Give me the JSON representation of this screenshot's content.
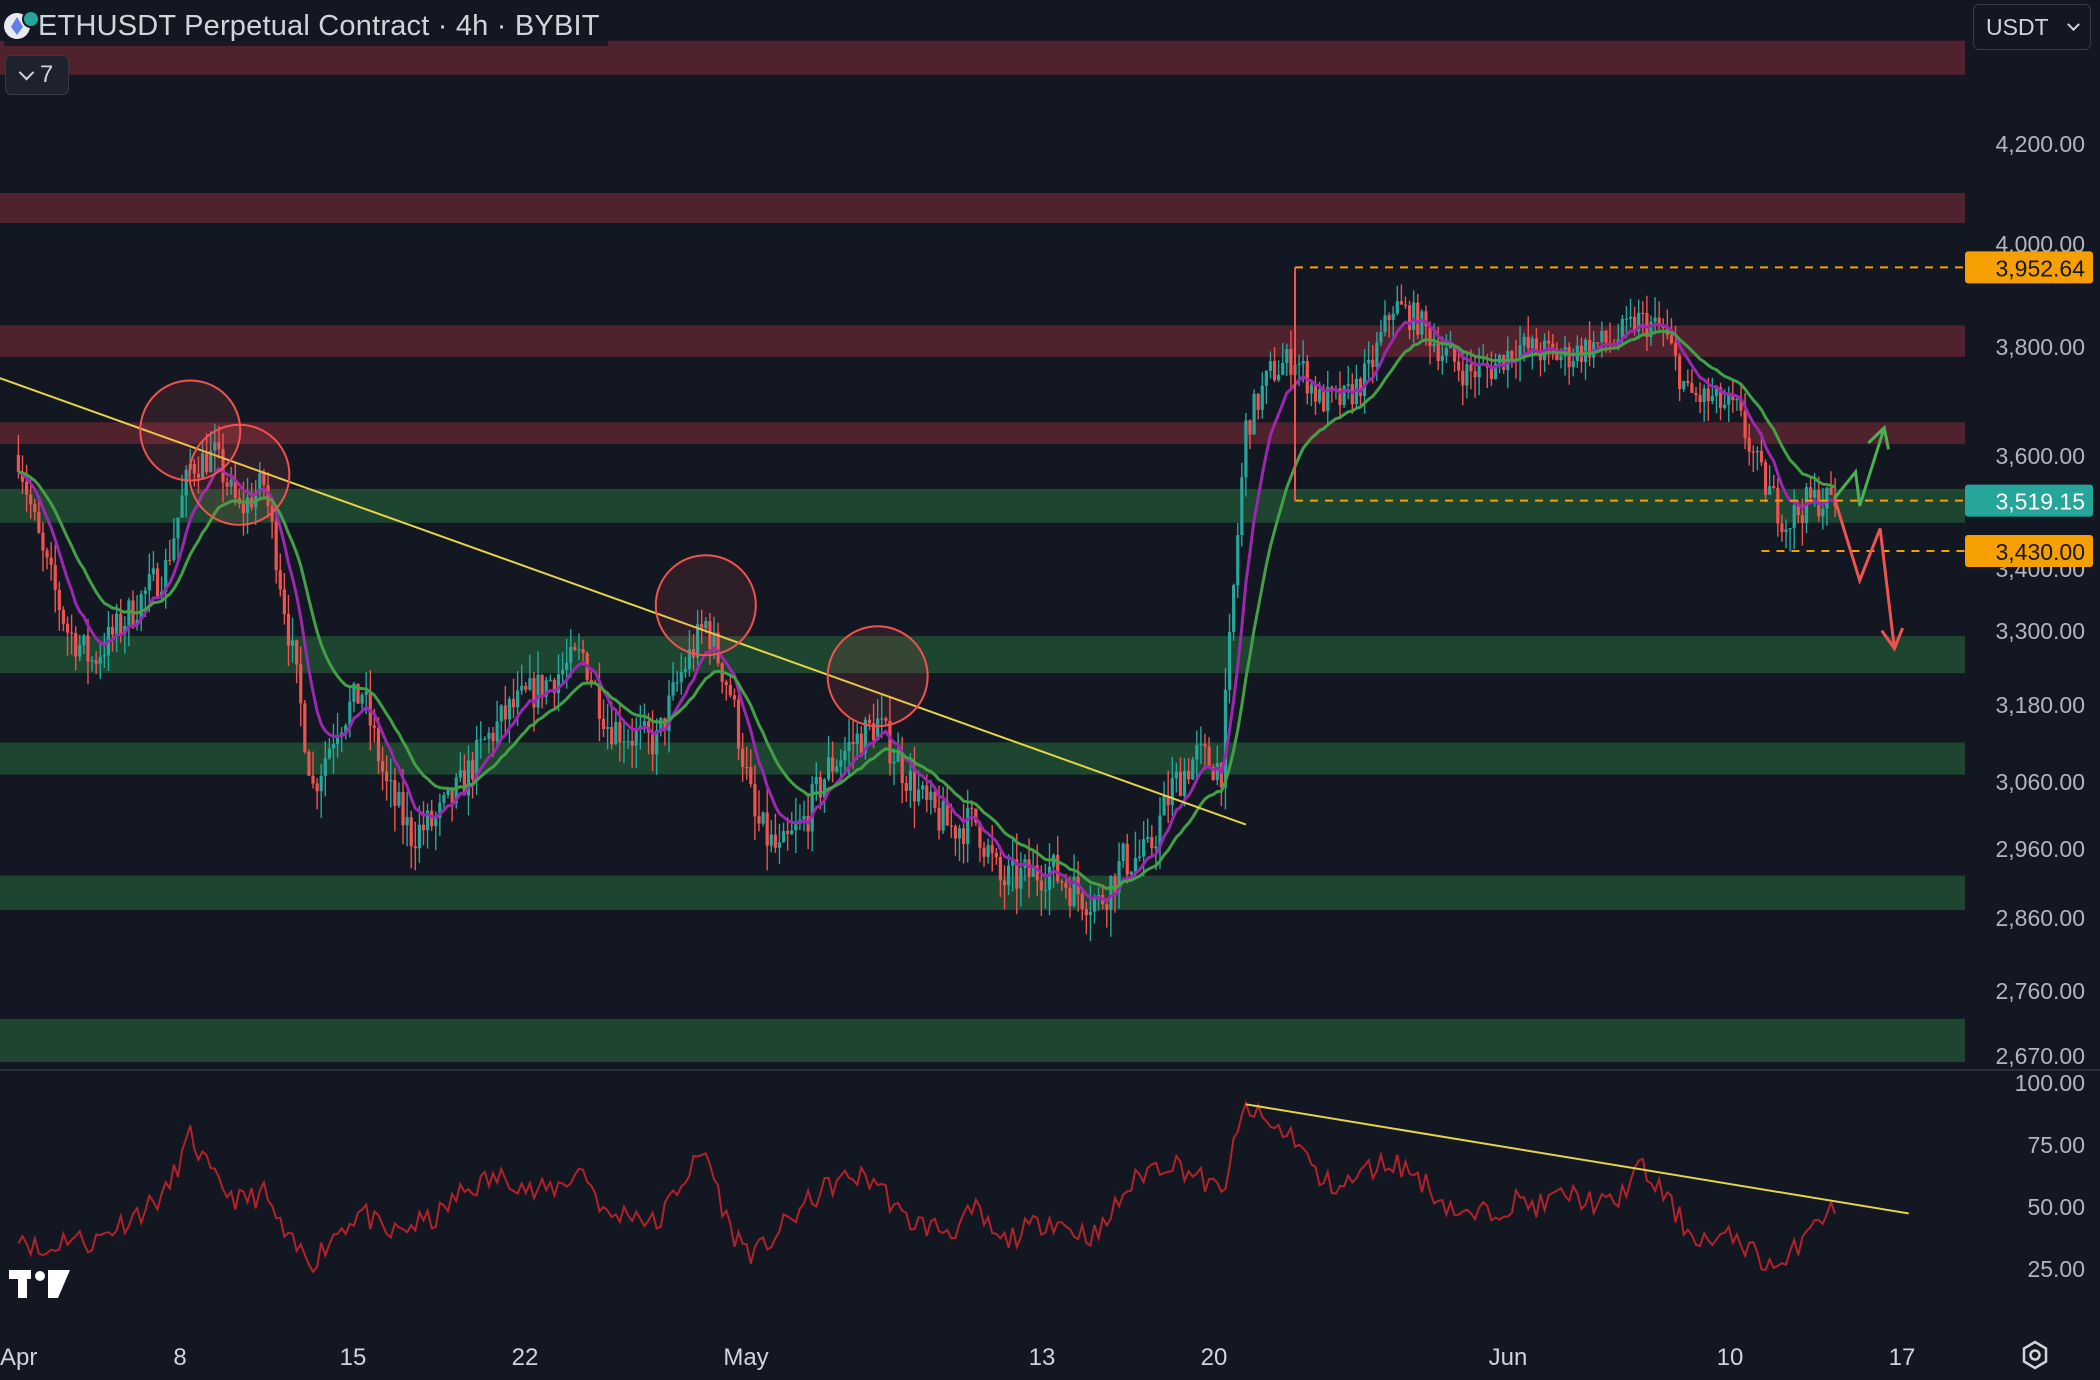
{
  "header": {
    "symbol_title": "ETHUSDT Perpetual Contract · 4h · BYBIT",
    "indicator_count": "7",
    "currency": "USDT"
  },
  "colors": {
    "background": "#131722",
    "bull": "#26a69a",
    "bear": "#ef5350",
    "ema_fast": "#9c27b0",
    "ema_slow": "#43a047",
    "trendline": "#e6d34a",
    "resistance_zone": "#5a2430",
    "support_zone": "#1f4a32",
    "level_label_orange": "#f59f00",
    "price_label_green": "#26a69a",
    "rsi_line": "#b2222a"
  },
  "icons": {
    "logo": "eth-icon",
    "collapse": "chevron-down-icon",
    "currency": "chevron-down-icon",
    "brand": "tradingview-icon",
    "settings": "gear-icon"
  },
  "chart_data": {
    "type": "candlestick",
    "symbol": "ETHUSDT",
    "timeframe": "4h",
    "exchange": "BYBIT",
    "x_axis": {
      "labels": [
        "Apr",
        "8",
        "15",
        "22",
        "May",
        "13",
        "20",
        "Jun",
        "10",
        "17"
      ]
    },
    "y_axis": {
      "range": [
        2620,
        4420
      ],
      "ticks": [
        "4,200.00",
        "4,000.00",
        "3,800.00",
        "3,600.00",
        "3,400.00",
        "3,300.00",
        "3,180.00",
        "3,060.00",
        "2,960.00",
        "2,860.00",
        "2,760.00",
        "2,670.00"
      ]
    },
    "price_labels": [
      {
        "text": "3,952.64",
        "value": 3952.64,
        "color": "orange"
      },
      {
        "text": "3,519.15",
        "value": 3519.15,
        "color": "green"
      },
      {
        "text": "3,430.00",
        "value": 3430.0,
        "color": "orange"
      }
    ],
    "zones": {
      "resistance": [
        [
          4320,
          4380
        ],
        [
          4040,
          4100
        ],
        [
          3780,
          3840
        ],
        [
          3620,
          3660
        ]
      ],
      "support": [
        [
          3480,
          3540
        ],
        [
          3230,
          3290
        ],
        [
          3070,
          3120
        ],
        [
          2870,
          2920
        ],
        [
          2660,
          2720
        ]
      ]
    },
    "close_path": [
      [
        "2024-04-01",
        3600
      ],
      [
        "2024-04-02",
        3420
      ],
      [
        "2024-04-03",
        3300
      ],
      [
        "2024-04-04",
        3250
      ],
      [
        "2024-04-05",
        3300
      ],
      [
        "2024-04-06",
        3350
      ],
      [
        "2024-04-07",
        3400
      ],
      [
        "2024-04-08",
        3580
      ],
      [
        "2024-04-09",
        3600
      ],
      [
        "2024-04-10",
        3500
      ],
      [
        "2024-04-11",
        3550
      ],
      [
        "2024-04-12",
        3300
      ],
      [
        "2024-04-13",
        3050
      ],
      [
        "2024-04-14",
        3150
      ],
      [
        "2024-04-15",
        3200
      ],
      [
        "2024-04-16",
        3050
      ],
      [
        "2024-04-17",
        2980
      ],
      [
        "2024-04-18",
        3000
      ],
      [
        "2024-04-19",
        3050
      ],
      [
        "2024-04-20",
        3120
      ],
      [
        "2024-04-21",
        3170
      ],
      [
        "2024-04-22",
        3200
      ],
      [
        "2024-04-23",
        3230
      ],
      [
        "2024-04-24",
        3260
      ],
      [
        "2024-04-25",
        3150
      ],
      [
        "2024-04-26",
        3130
      ],
      [
        "2024-04-27",
        3120
      ],
      [
        "2024-04-28",
        3230
      ],
      [
        "2024-04-29",
        3310
      ],
      [
        "2024-04-30",
        3200
      ],
      [
        "2024-05-01",
        3000
      ],
      [
        "2024-05-02",
        2950
      ],
      [
        "2024-05-03",
        3000
      ],
      [
        "2024-05-04",
        3080
      ],
      [
        "2024-05-05",
        3120
      ],
      [
        "2024-05-06",
        3150
      ],
      [
        "2024-05-07",
        3080
      ],
      [
        "2024-05-08",
        3020
      ],
      [
        "2024-05-09",
        2990
      ],
      [
        "2024-05-10",
        3000
      ],
      [
        "2024-05-11",
        2910
      ],
      [
        "2024-05-12",
        2920
      ],
      [
        "2024-05-13",
        2930
      ],
      [
        "2024-05-14",
        2900
      ],
      [
        "2024-05-15",
        2880
      ],
      [
        "2024-05-16",
        2940
      ],
      [
        "2024-05-17",
        2950
      ],
      [
        "2024-05-18",
        3050
      ],
      [
        "2024-05-19",
        3100
      ],
      [
        "2024-05-20",
        3080
      ],
      [
        "2024-05-21",
        3650
      ],
      [
        "2024-05-22",
        3750
      ],
      [
        "2024-05-23",
        3780
      ],
      [
        "2024-05-24",
        3700
      ],
      [
        "2024-05-25",
        3700
      ],
      [
        "2024-05-26",
        3750
      ],
      [
        "2024-05-27",
        3880
      ],
      [
        "2024-05-28",
        3850
      ],
      [
        "2024-05-29",
        3790
      ],
      [
        "2024-05-30",
        3750
      ],
      [
        "2024-05-31",
        3760
      ],
      [
        "2024-06-01",
        3800
      ],
      [
        "2024-06-02",
        3790
      ],
      [
        "2024-06-03",
        3780
      ],
      [
        "2024-06-04",
        3800
      ],
      [
        "2024-06-05",
        3810
      ],
      [
        "2024-06-06",
        3850
      ],
      [
        "2024-06-07",
        3830
      ],
      [
        "2024-06-08",
        3710
      ],
      [
        "2024-06-09",
        3700
      ],
      [
        "2024-06-10",
        3680
      ],
      [
        "2024-06-11",
        3560
      ],
      [
        "2024-06-12",
        3480
      ],
      [
        "2024-06-13",
        3520
      ],
      [
        "2024-06-14",
        3519
      ]
    ],
    "annotations": {
      "trendline": {
        "from": [
          "2024-03-31",
          3745
        ],
        "to": [
          "2024-05-21",
          2995
        ]
      },
      "circled_touches": [
        [
          "2024-04-08",
          3645
        ],
        [
          "2024-04-10",
          3565
        ],
        [
          "2024-04-29",
          3340
        ],
        [
          "2024-05-06",
          3225
        ]
      ],
      "dashed_levels": [
        {
          "value": 3952.64,
          "from": "2024-05-23"
        },
        {
          "value": 3519.15,
          "from": "2024-05-23"
        },
        {
          "value": 3430.0,
          "from": "2024-06-11"
        }
      ],
      "bullish_projection": [
        [
          "2024-06-14",
          3525
        ],
        [
          "2024-06-14T20:00",
          3570
        ],
        [
          "2024-06-15",
          3510
        ],
        [
          "2024-06-16",
          3650
        ],
        [
          "2024-06-16T10:00",
          3590
        ]
      ],
      "bearish_projection": [
        [
          "2024-06-14",
          3520
        ],
        [
          "2024-06-15",
          3380
        ],
        [
          "2024-06-15T20:00",
          3470
        ],
        [
          "2024-06-16T10:00",
          3270
        ],
        [
          "2024-06-16T20:00",
          3300
        ]
      ]
    },
    "rsi": {
      "y_axis": {
        "range": [
          0,
          100
        ],
        "ticks": [
          "100.00",
          "75.00",
          "50.00",
          "25.00"
        ]
      },
      "path": [
        [
          "2024-04-01",
          40
        ],
        [
          "2024-04-02",
          30
        ],
        [
          "2024-04-03",
          38
        ],
        [
          "2024-04-04",
          35
        ],
        [
          "2024-04-05",
          42
        ],
        [
          "2024-04-06",
          48
        ],
        [
          "2024-04-07",
          55
        ],
        [
          "2024-04-08",
          78
        ],
        [
          "2024-04-09",
          60
        ],
        [
          "2024-04-10",
          52
        ],
        [
          "2024-04-11",
          55
        ],
        [
          "2024-04-12",
          35
        ],
        [
          "2024-04-13",
          28
        ],
        [
          "2024-04-14",
          40
        ],
        [
          "2024-04-15",
          48
        ],
        [
          "2024-04-16",
          38
        ],
        [
          "2024-04-17",
          42
        ],
        [
          "2024-04-18",
          45
        ],
        [
          "2024-04-19",
          55
        ],
        [
          "2024-04-20",
          60
        ],
        [
          "2024-04-21",
          62
        ],
        [
          "2024-04-22",
          55
        ],
        [
          "2024-04-23",
          58
        ],
        [
          "2024-04-24",
          65
        ],
        [
          "2024-04-25",
          45
        ],
        [
          "2024-04-26",
          48
        ],
        [
          "2024-04-27",
          42
        ],
        [
          "2024-04-28",
          60
        ],
        [
          "2024-04-29",
          72
        ],
        [
          "2024-04-30",
          40
        ],
        [
          "2024-05-01",
          30
        ],
        [
          "2024-05-02",
          40
        ],
        [
          "2024-05-03",
          50
        ],
        [
          "2024-05-04",
          58
        ],
        [
          "2024-05-05",
          62
        ],
        [
          "2024-05-06",
          60
        ],
        [
          "2024-05-07",
          45
        ],
        [
          "2024-05-08",
          42
        ],
        [
          "2024-05-09",
          40
        ],
        [
          "2024-05-10",
          48
        ],
        [
          "2024-05-11",
          35
        ],
        [
          "2024-05-12",
          40
        ],
        [
          "2024-05-13",
          45
        ],
        [
          "2024-05-14",
          40
        ],
        [
          "2024-05-15",
          38
        ],
        [
          "2024-05-16",
          55
        ],
        [
          "2024-05-17",
          65
        ],
        [
          "2024-05-18",
          68
        ],
        [
          "2024-05-19",
          62
        ],
        [
          "2024-05-20",
          55
        ],
        [
          "2024-05-21",
          90
        ],
        [
          "2024-05-22",
          82
        ],
        [
          "2024-05-23",
          78
        ],
        [
          "2024-05-24",
          60
        ],
        [
          "2024-05-25",
          58
        ],
        [
          "2024-05-26",
          65
        ],
        [
          "2024-05-27",
          68
        ],
        [
          "2024-05-28",
          62
        ],
        [
          "2024-05-29",
          52
        ],
        [
          "2024-05-30",
          45
        ],
        [
          "2024-05-31",
          48
        ],
        [
          "2024-06-01",
          52
        ],
        [
          "2024-06-02",
          50
        ],
        [
          "2024-06-03",
          55
        ],
        [
          "2024-06-04",
          52
        ],
        [
          "2024-06-05",
          50
        ],
        [
          "2024-06-06",
          66
        ],
        [
          "2024-06-07",
          55
        ],
        [
          "2024-06-08",
          40
        ],
        [
          "2024-06-09",
          35
        ],
        [
          "2024-06-10",
          38
        ],
        [
          "2024-06-11",
          28
        ],
        [
          "2024-06-12",
          25
        ],
        [
          "2024-06-13",
          45
        ],
        [
          "2024-06-14",
          48
        ]
      ],
      "trendline": {
        "from": [
          "2024-05-21",
          91
        ],
        "to": [
          "2024-06-17",
          47
        ]
      }
    }
  }
}
